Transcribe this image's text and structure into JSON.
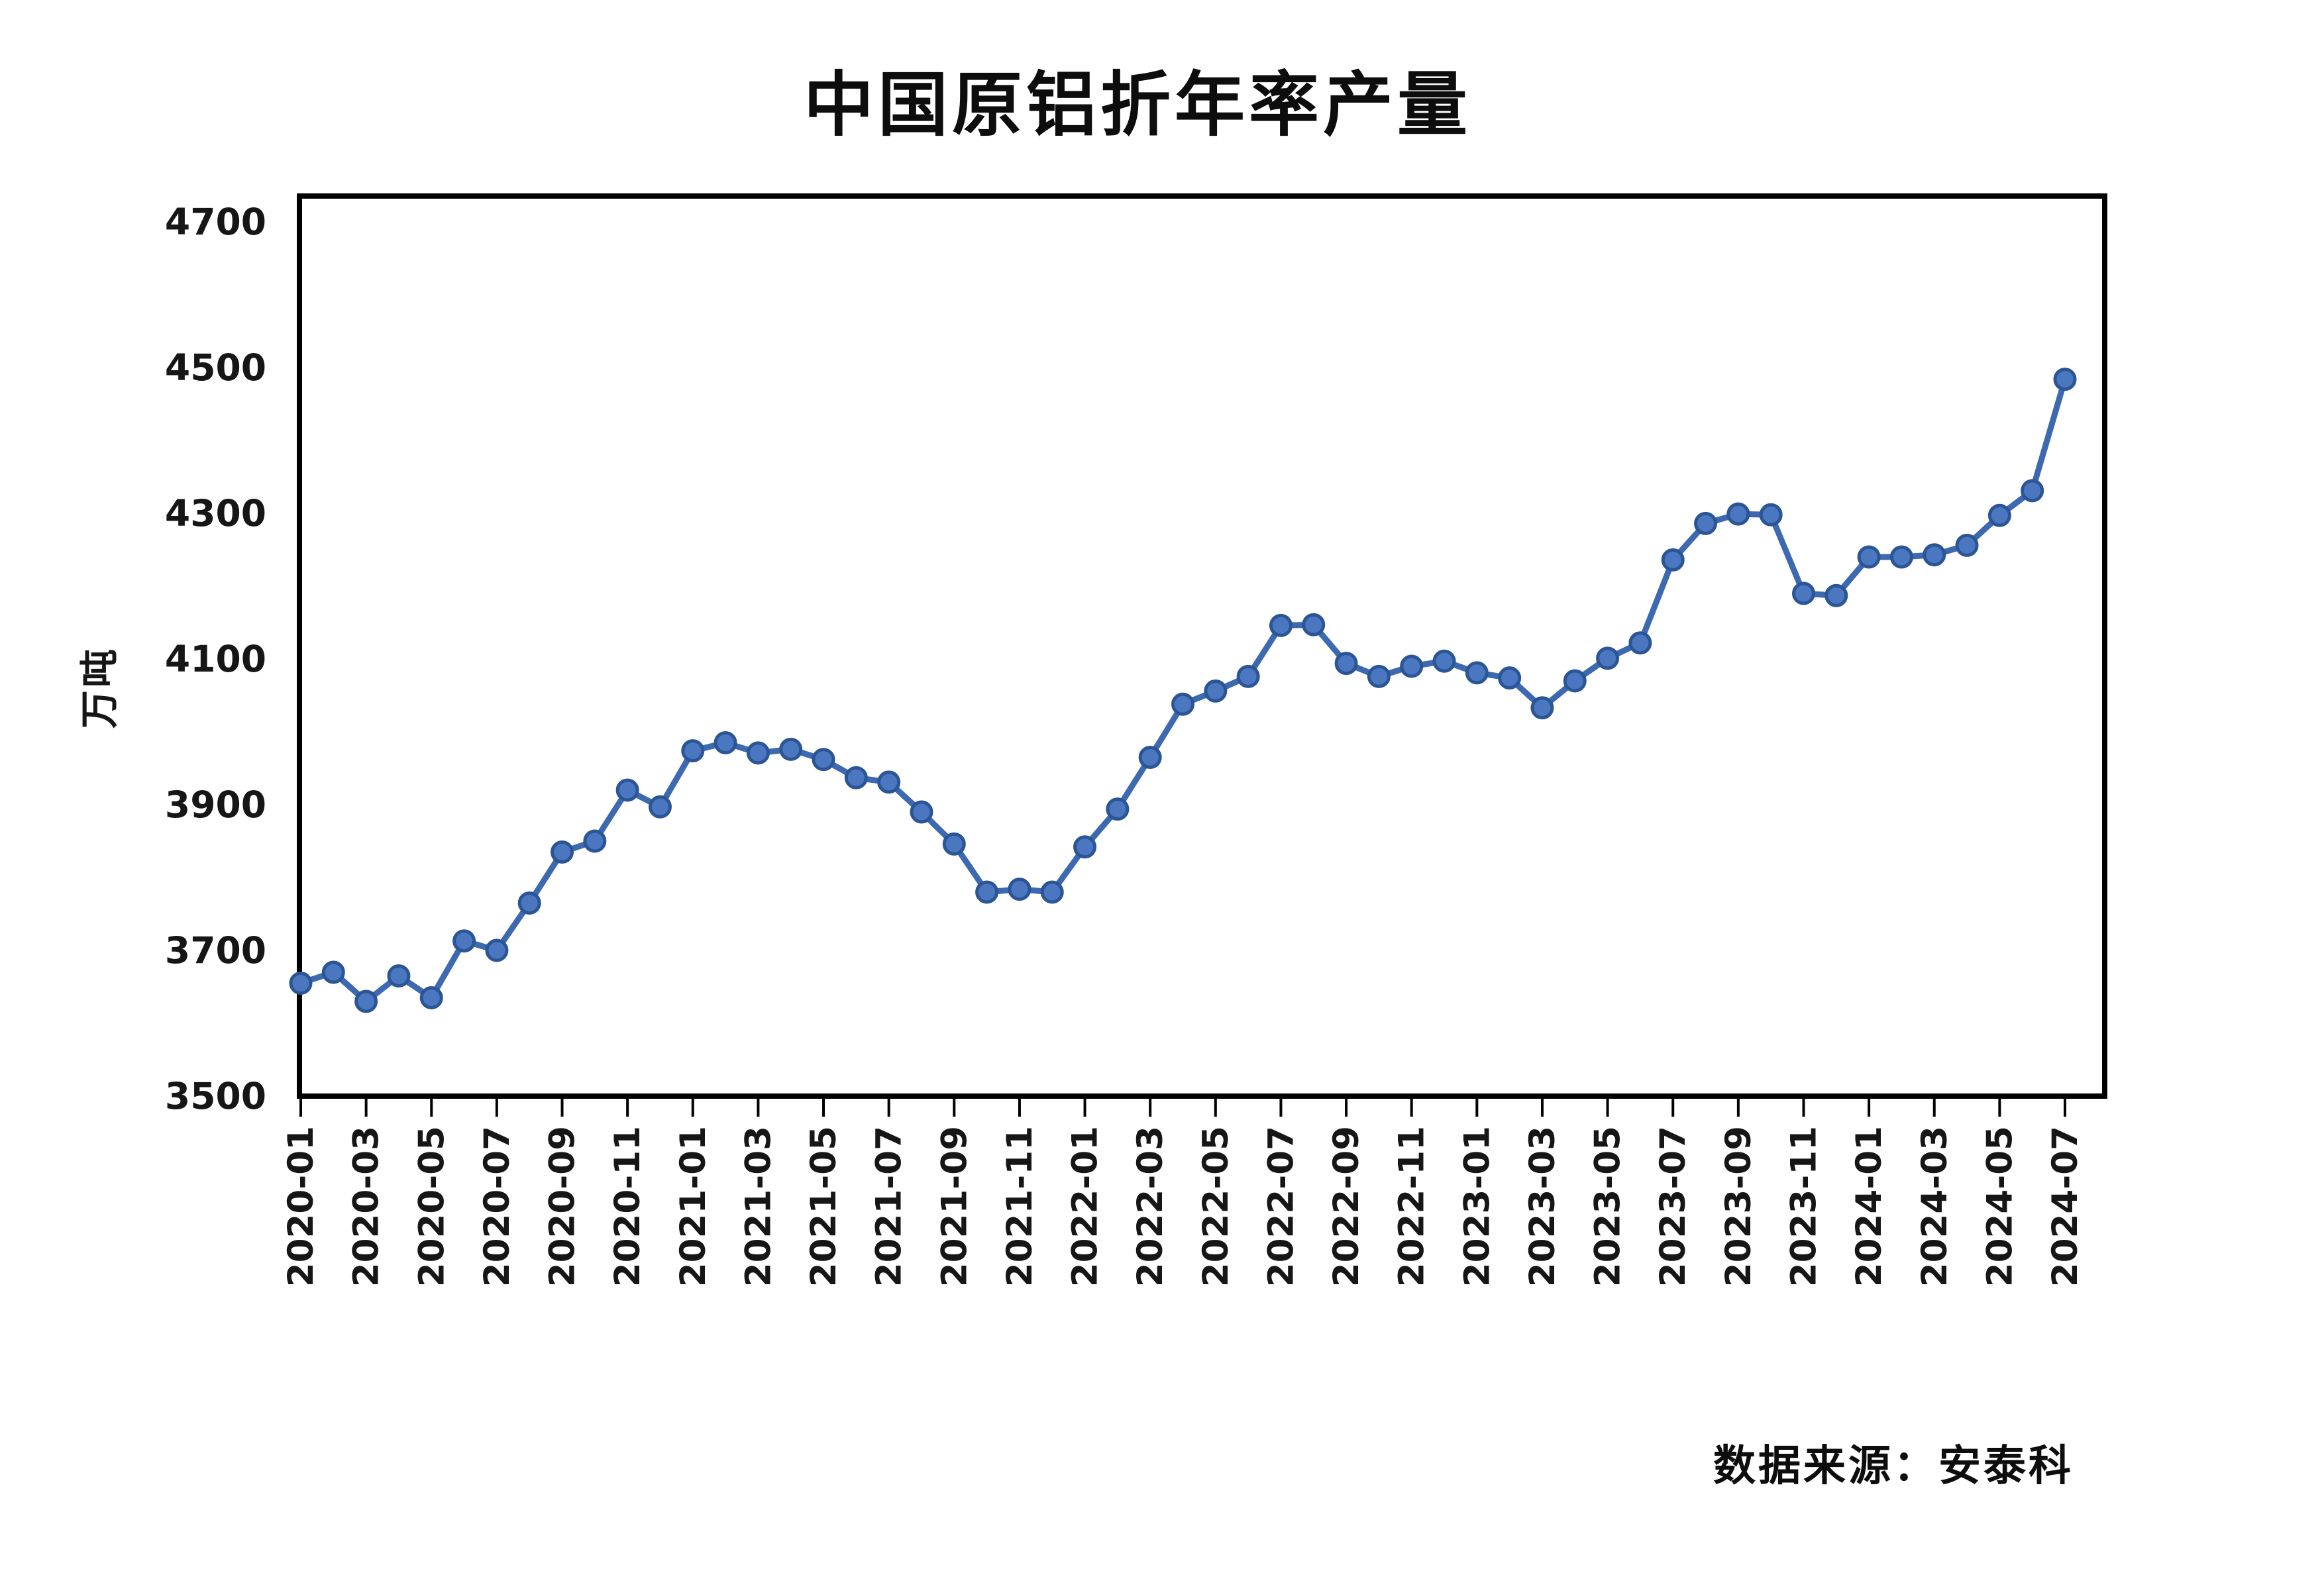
{
  "title": "中国原铝折年率产量",
  "source": {
    "text": "数据来源：安泰科"
  },
  "colors": {
    "line": "#3c69b0",
    "marker_fill": "#4a77c0",
    "marker_edge": "#2b5595",
    "axis": "#000000",
    "text": "#161616"
  },
  "chart_data": {
    "type": "line",
    "title": "中国原铝折年率产量",
    "ylabel": "万吨",
    "xlabel": "",
    "grid": false,
    "legend_position": "none",
    "ylim": [
      3500,
      4735
    ],
    "y_ticks": [
      3500,
      3700,
      3900,
      4100,
      4300,
      4500,
      4700
    ],
    "x_tick_labels": [
      "2020-01",
      "2020-03",
      "2020-05",
      "2020-07",
      "2020-09",
      "2020-11",
      "2021-01",
      "2021-03",
      "2021-05",
      "2021-07",
      "2021-09",
      "2021-11",
      "2022-01",
      "2022-03",
      "2022-05",
      "2022-07",
      "2022-09",
      "2022-11",
      "2023-01",
      "2023-03",
      "2023-05",
      "2023-07",
      "2023-09",
      "2023-11",
      "2024-01",
      "2024-03",
      "2024-05",
      "2024-07"
    ],
    "x": [
      "2020-01",
      "2020-02",
      "2020-03",
      "2020-04",
      "2020-05",
      "2020-06",
      "2020-07",
      "2020-08",
      "2020-09",
      "2020-10",
      "2020-11",
      "2020-12",
      "2021-01",
      "2021-02",
      "2021-03",
      "2021-04",
      "2021-05",
      "2021-06",
      "2021-07",
      "2021-08",
      "2021-09",
      "2021-10",
      "2021-11",
      "2021-12",
      "2022-01",
      "2022-02",
      "2022-03",
      "2022-04",
      "2022-05",
      "2022-06",
      "2022-07",
      "2022-08",
      "2022-09",
      "2022-10",
      "2022-11",
      "2022-12",
      "2023-01",
      "2023-02",
      "2023-03",
      "2023-04",
      "2023-05",
      "2023-06",
      "2023-07",
      "2023-08",
      "2023-09",
      "2023-10",
      "2023-11",
      "2023-12",
      "2024-01",
      "2024-02",
      "2024-03",
      "2024-04",
      "2024-05",
      "2024-06",
      "2024-07"
    ],
    "values": [
      3655,
      3670,
      3630,
      3665,
      3635,
      3713,
      3700,
      3765,
      3835,
      3850,
      3920,
      3897,
      3974,
      3985,
      3971,
      3976,
      3962,
      3937,
      3931,
      3890,
      3846,
      3780,
      3784,
      3780,
      3842,
      3894,
      3965,
      4038,
      4056,
      4076,
      4146,
      4147,
      4094,
      4076,
      4090,
      4097,
      4081,
      4074,
      4033,
      4070,
      4101,
      4122,
      4236,
      4286,
      4299,
      4298,
      4190,
      4187,
      4240,
      4240,
      4243,
      4256,
      4297,
      4331,
      4484
    ]
  }
}
